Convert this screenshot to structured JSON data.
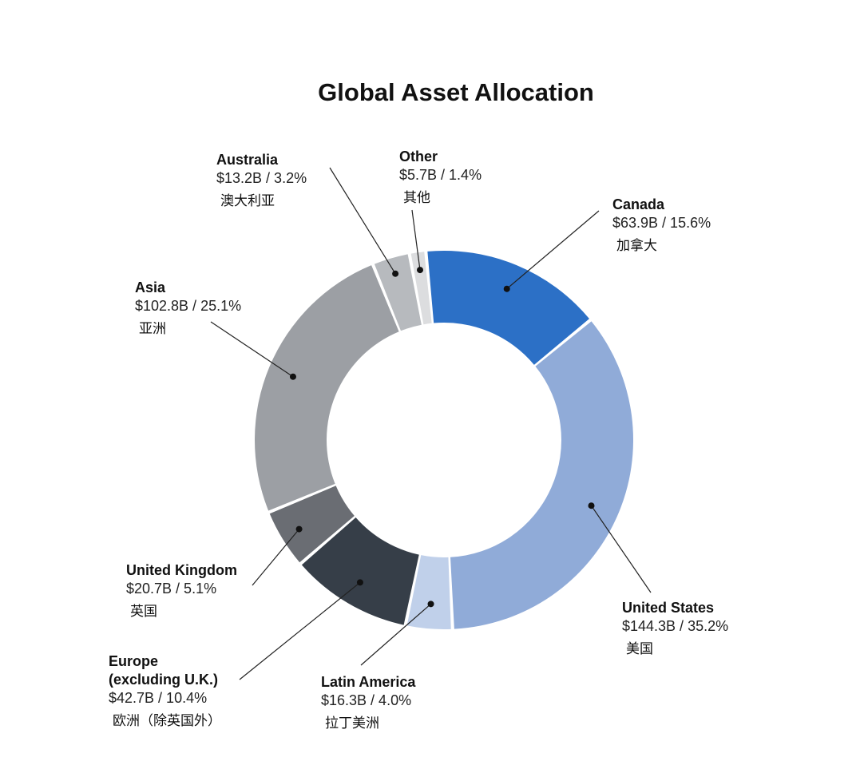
{
  "chart_data": {
    "type": "pie",
    "variant": "donut",
    "title": "Global Asset Allocation",
    "legend": "none (direct labels with leader lines)",
    "slices": [
      {
        "key": "canada",
        "name": "Canada",
        "value_text": "$63.9B / 15.6%",
        "value_billions": 63.9,
        "percent": 15.6,
        "label_cn": "加拿大",
        "color": "#2c70c6"
      },
      {
        "key": "us",
        "name": "United States",
        "value_text": "$144.3B / 35.2%",
        "value_billions": 144.3,
        "percent": 35.2,
        "label_cn": "美国",
        "color": "#90abd8"
      },
      {
        "key": "latam",
        "name": "Latin America",
        "value_text": "$16.3B / 4.0%",
        "value_billions": 16.3,
        "percent": 4.0,
        "label_cn": "拉丁美洲",
        "color": "#c0d0ea"
      },
      {
        "key": "europe",
        "name": "Europe\n(excluding U.K.)",
        "name_lines": [
          "Europe",
          "(excluding U.K.)"
        ],
        "value_text": "$42.7B / 10.4%",
        "value_billions": 42.7,
        "percent": 10.4,
        "label_cn": "欧洲（除英国外）",
        "color": "#363e48"
      },
      {
        "key": "uk",
        "name": "United Kingdom",
        "value_text": "$20.7B / 5.1%",
        "value_billions": 20.7,
        "percent": 5.1,
        "label_cn": "英国",
        "color": "#6a6d73"
      },
      {
        "key": "asia",
        "name": "Asia",
        "value_text": "$102.8B / 25.1%",
        "value_billions": 102.8,
        "percent": 25.1,
        "label_cn": "亚洲",
        "color": "#9c9fa4"
      },
      {
        "key": "australia",
        "name": "Australia",
        "value_text": "$13.2B / 3.2%",
        "value_billions": 13.2,
        "percent": 3.2,
        "label_cn": "澳大利亚",
        "color": "#b7babe"
      },
      {
        "key": "other",
        "name": "Other",
        "value_text": "$5.7B / 1.4%",
        "value_billions": 5.7,
        "percent": 1.4,
        "label_cn": "其他",
        "color": "#dcdddf"
      }
    ]
  }
}
